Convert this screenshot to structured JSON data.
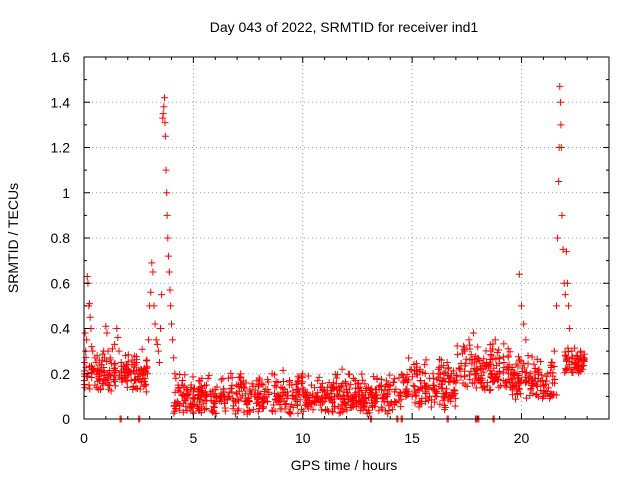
{
  "chart_data": {
    "type": "scatter",
    "title": "Day 043 of 2022, SRMTID for receiver ind1",
    "xlabel": "GPS time / hours",
    "ylabel": "SRMTID / TECUs",
    "xlim": [
      0,
      24
    ],
    "ylim": [
      0,
      1.6
    ],
    "xticks": [
      0,
      5,
      10,
      15,
      20
    ],
    "xtick_labels": [
      "0",
      "5",
      "10",
      "15",
      "20"
    ],
    "yticks": [
      0,
      0.2,
      0.4,
      0.6,
      0.8,
      1.0,
      1.2,
      1.4,
      1.6
    ],
    "ytick_labels": [
      "0",
      "0.2",
      "0.4",
      "0.6",
      "0.8",
      "1",
      "1.2",
      "1.4",
      "1.6"
    ],
    "grid": true,
    "marker": "+",
    "marker_color": "#ff0000",
    "series": [
      {
        "name": "ind1",
        "points": [
          [
            0.02,
            0.25
          ],
          [
            0.05,
            0.38
          ],
          [
            0.08,
            0.3
          ],
          [
            0.12,
            0.35
          ],
          [
            0.15,
            0.63
          ],
          [
            0.18,
            0.6
          ],
          [
            0.22,
            0.5
          ],
          [
            0.25,
            0.51
          ],
          [
            0.28,
            0.45
          ],
          [
            0.32,
            0.4
          ],
          [
            0.35,
            0.32
          ],
          [
            0.4,
            0.3
          ],
          [
            0.45,
            0.22
          ],
          [
            0.5,
            0.15
          ],
          [
            0.55,
            0.25
          ],
          [
            0.6,
            0.28
          ],
          [
            0.7,
            0.26
          ],
          [
            0.8,
            0.24
          ],
          [
            0.9,
            0.3
          ],
          [
            1.0,
            0.41
          ],
          [
            1.05,
            0.38
          ],
          [
            1.1,
            0.3
          ],
          [
            1.2,
            0.27
          ],
          [
            1.3,
            0.31
          ],
          [
            1.4,
            0.33
          ],
          [
            1.5,
            0.4
          ],
          [
            1.55,
            0.36
          ],
          [
            1.6,
            0.3
          ],
          [
            1.7,
            0.25
          ],
          [
            1.8,
            0.22
          ],
          [
            1.9,
            0.28
          ],
          [
            2.0,
            0.24
          ],
          [
            2.1,
            0.2
          ],
          [
            2.2,
            0.26
          ],
          [
            2.3,
            0.23
          ],
          [
            2.4,
            0.25
          ],
          [
            2.5,
            0.2
          ],
          [
            2.6,
            0.22
          ],
          [
            2.7,
            0.18
          ],
          [
            2.8,
            0.15
          ],
          [
            2.85,
            0.12
          ],
          [
            2.9,
            0.2
          ],
          [
            2.95,
            0.35
          ],
          [
            3.0,
            0.5
          ],
          [
            3.05,
            0.56
          ],
          [
            3.1,
            0.69
          ],
          [
            3.15,
            0.65
          ],
          [
            3.2,
            0.5
          ],
          [
            3.25,
            0.42
          ],
          [
            3.3,
            0.35
          ],
          [
            3.35,
            0.33
          ],
          [
            3.4,
            0.3
          ],
          [
            3.45,
            0.25
          ],
          [
            3.5,
            0.4
          ],
          [
            3.55,
            0.55
          ],
          [
            3.6,
            1.33
          ],
          [
            3.62,
            1.35
          ],
          [
            3.65,
            1.38
          ],
          [
            3.68,
            1.42
          ],
          [
            3.7,
            1.31
          ],
          [
            3.72,
            1.25
          ],
          [
            3.75,
            1.1
          ],
          [
            3.78,
            1.0
          ],
          [
            3.8,
            0.9
          ],
          [
            3.83,
            0.8
          ],
          [
            3.86,
            0.72
          ],
          [
            3.9,
            0.65
          ],
          [
            3.93,
            0.57
          ],
          [
            3.96,
            0.5
          ],
          [
            4.0,
            0.42
          ],
          [
            4.05,
            0.35
          ],
          [
            4.1,
            0.27
          ],
          [
            4.15,
            0.2
          ],
          [
            4.2,
            0.18
          ],
          [
            4.3,
            0.15
          ],
          [
            4.4,
            0.12
          ],
          [
            4.5,
            0.17
          ],
          [
            4.6,
            0.1
          ],
          [
            4.7,
            0.13
          ],
          [
            4.8,
            0.11
          ],
          [
            4.9,
            0.14
          ],
          [
            5.0,
            0.12
          ],
          [
            5.2,
            0.09
          ],
          [
            5.4,
            0.11
          ],
          [
            5.6,
            0.15
          ],
          [
            5.8,
            0.1
          ],
          [
            6.0,
            0.13
          ],
          [
            6.2,
            0.08
          ],
          [
            6.4,
            0.12
          ],
          [
            6.6,
            0.18
          ],
          [
            6.8,
            0.09
          ],
          [
            7.0,
            0.11
          ],
          [
            7.2,
            0.14
          ],
          [
            7.4,
            0.08
          ],
          [
            7.6,
            0.12
          ],
          [
            7.8,
            0.1
          ],
          [
            8.0,
            0.15
          ],
          [
            8.2,
            0.09
          ],
          [
            8.4,
            0.13
          ],
          [
            8.6,
            0.2
          ],
          [
            8.8,
            0.1
          ],
          [
            9.0,
            0.14
          ],
          [
            9.2,
            0.11
          ],
          [
            9.4,
            0.17
          ],
          [
            9.6,
            0.09
          ],
          [
            9.8,
            0.13
          ],
          [
            10.0,
            0.12
          ],
          [
            10.2,
            0.08
          ],
          [
            10.4,
            0.15
          ],
          [
            10.6,
            0.1
          ],
          [
            10.8,
            0.14
          ],
          [
            11.0,
            0.12
          ],
          [
            11.2,
            0.09
          ],
          [
            11.4,
            0.16
          ],
          [
            11.6,
            0.11
          ],
          [
            11.8,
            0.22
          ],
          [
            12.0,
            0.13
          ],
          [
            12.2,
            0.1
          ],
          [
            12.4,
            0.17
          ],
          [
            12.6,
            0.12
          ],
          [
            12.8,
            0.09
          ],
          [
            13.0,
            0.14
          ],
          [
            13.2,
            0.11
          ],
          [
            13.4,
            0.18
          ],
          [
            13.6,
            0.13
          ],
          [
            13.8,
            0.1
          ],
          [
            14.0,
            0.15
          ],
          [
            14.2,
            0.12
          ],
          [
            14.4,
            0.08
          ],
          [
            14.6,
            0.16
          ],
          [
            14.8,
            0.11
          ],
          [
            15.0,
            0.1
          ],
          [
            15.2,
            0.2
          ],
          [
            15.4,
            0.14
          ],
          [
            15.6,
            0.12
          ],
          [
            15.8,
            0.18
          ],
          [
            16.0,
            0.15
          ],
          [
            16.2,
            0.22
          ],
          [
            16.4,
            0.17
          ],
          [
            16.6,
            0.25
          ],
          [
            16.8,
            0.2
          ],
          [
            17.0,
            0.16
          ],
          [
            17.2,
            0.22
          ],
          [
            17.4,
            0.3
          ],
          [
            17.6,
            0.35
          ],
          [
            17.8,
            0.38
          ],
          [
            18.0,
            0.22
          ],
          [
            18.2,
            0.18
          ],
          [
            18.4,
            0.25
          ],
          [
            18.6,
            0.3
          ],
          [
            18.8,
            0.35
          ],
          [
            19.0,
            0.2
          ],
          [
            19.2,
            0.25
          ],
          [
            19.4,
            0.22
          ],
          [
            19.6,
            0.18
          ],
          [
            19.8,
            0.2
          ],
          [
            19.9,
            0.64
          ],
          [
            20.0,
            0.5
          ],
          [
            20.1,
            0.42
          ],
          [
            20.2,
            0.35
          ],
          [
            20.3,
            0.28
          ],
          [
            20.4,
            0.2
          ],
          [
            20.6,
            0.18
          ],
          [
            20.8,
            0.22
          ],
          [
            21.0,
            0.15
          ],
          [
            21.2,
            0.2
          ],
          [
            21.4,
            0.25
          ],
          [
            21.5,
            0.3
          ],
          [
            21.6,
            0.5
          ],
          [
            21.65,
            0.8
          ],
          [
            21.7,
            1.05
          ],
          [
            21.72,
            1.2
          ],
          [
            21.75,
            1.47
          ],
          [
            21.78,
            1.4
          ],
          [
            21.8,
            1.3
          ],
          [
            21.82,
            1.2
          ],
          [
            21.85,
            0.9
          ],
          [
            21.9,
            0.75
          ],
          [
            21.95,
            0.6
          ],
          [
            22.0,
            0.55
          ],
          [
            22.05,
            0.74
          ],
          [
            22.1,
            0.6
          ],
          [
            22.15,
            0.5
          ],
          [
            22.2,
            0.4
          ],
          [
            22.3,
            0.3
          ],
          [
            22.4,
            0.25
          ],
          [
            22.5,
            0.28
          ],
          [
            22.6,
            0.24
          ],
          [
            22.7,
            0.3
          ],
          [
            22.8,
            0.26
          ]
        ],
        "dense_band": {
          "description": "background scatter of many small values",
          "segments": [
            {
              "x0": 0.0,
              "x1": 2.9,
              "ymin": 0.12,
              "ymax": 0.32
            },
            {
              "x0": 4.1,
              "x1": 14.5,
              "ymin": 0.02,
              "ymax": 0.22
            },
            {
              "x0": 14.5,
              "x1": 17.0,
              "ymin": 0.04,
              "ymax": 0.28
            },
            {
              "x0": 17.0,
              "x1": 19.5,
              "ymin": 0.12,
              "ymax": 0.36
            },
            {
              "x0": 19.5,
              "x1": 21.6,
              "ymin": 0.08,
              "ymax": 0.3
            },
            {
              "x0": 21.9,
              "x1": 22.9,
              "ymin": 0.2,
              "ymax": 0.32
            }
          ]
        },
        "zero_points_x": [
          1.65,
          2.5,
          13.1,
          14.3,
          14.5,
          16.6,
          17.9,
          18.0,
          18.7
        ]
      }
    ]
  }
}
